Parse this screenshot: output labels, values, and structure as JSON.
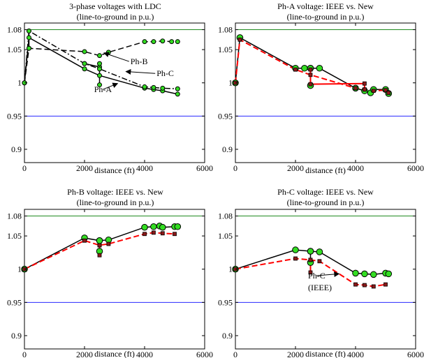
{
  "colors": {
    "upper_limit": "#1f8a1f",
    "lower_limit": "#2a2aff",
    "new_series": "#000000",
    "ieee_series": "#ff0000",
    "marker_fill": "#33dd22",
    "ieee_marker": "#8b1a1a"
  },
  "chart_data": [
    {
      "type": "line",
      "title": "3-phase voltages with LDC",
      "subtitle": "(line-to-ground in p.u.)",
      "xlabel": "distance (ft)",
      "xlim": [
        0,
        6000
      ],
      "ylim": [
        0.88,
        1.09
      ],
      "xticks": [
        0,
        2000,
        4000,
        6000
      ],
      "yticks": [
        0.9,
        0.95,
        1,
        1.05,
        1.08
      ],
      "xtick_labels": [
        "0",
        "2000",
        "4000",
        "6000"
      ],
      "ytick_labels": [
        "0.9",
        "0.95",
        "1",
        "1.05",
        "1.08"
      ],
      "hlines": [
        {
          "y": 1.08,
          "color": "#1f8a1f"
        },
        {
          "y": 0.95,
          "color": "#2a2aff"
        }
      ],
      "series": [
        {
          "color": "#000000",
          "dash": "solid",
          "marker": "small-green",
          "x": [
            0,
            150,
            2000,
            2500,
            4000,
            4300,
            4600,
            5100
          ],
          "y": [
            1.0,
            1.068,
            1.021,
            1.011,
            0.992,
            0.99,
            0.988,
            0.983
          ]
        },
        {
          "color": "#000000",
          "dash": "solid",
          "marker": "small-green",
          "x": [
            2000,
            2500
          ],
          "y": [
            1.029,
            1.024
          ]
        },
        {
          "color": "#000000",
          "dash": "solid",
          "marker": "small-green",
          "x": [
            2500,
            2500
          ],
          "y": [
            1.029,
            0.997
          ]
        },
        {
          "color": "#000000",
          "dash": "solid",
          "marker": "small-green",
          "x": [
            150,
            150
          ],
          "y": [
            1.078,
            1.052
          ]
        },
        {
          "color": "#000000",
          "dash": "dashdot",
          "marker": "small-green",
          "x": [
            0,
            150,
            2000,
            2500,
            4000,
            4300,
            4600,
            5100
          ],
          "y": [
            1.0,
            1.078,
            1.029,
            1.021,
            0.994,
            0.993,
            0.992,
            0.991
          ]
        },
        {
          "color": "#000000",
          "dash": "dashed",
          "marker": "small-green",
          "x": [
            0,
            150,
            2000,
            2500,
            2800,
            4000,
            4300,
            4600,
            4900,
            5100
          ],
          "y": [
            1.0,
            1.052,
            1.047,
            1.041,
            1.046,
            1.062,
            1.062,
            1.063,
            1.062,
            1.062
          ]
        }
      ],
      "annotations": [
        {
          "text": "Ph-B",
          "x": 3530,
          "y": 1.028,
          "arrow_to_x": 2650,
          "arrow_to_y": 1.045
        },
        {
          "text": "Ph-C",
          "x": 4400,
          "y": 1.01,
          "arrow_to_x": 3380,
          "arrow_to_y": 1.017
        },
        {
          "text": "Ph-A",
          "x": 2320,
          "y": 0.986,
          "arrow_to_x": 3100,
          "arrow_to_y": 0.999
        }
      ]
    },
    {
      "type": "line",
      "title": "Ph-A voltage: IEEE vs. New",
      "subtitle": "(line-to-ground in p.u.)",
      "xlabel": "distance (ft)",
      "xlim": [
        0,
        6000
      ],
      "ylim": [
        0.88,
        1.09
      ],
      "xticks": [
        0,
        2000,
        4000,
        6000
      ],
      "yticks": [
        0.9,
        0.95,
        1,
        1.05,
        1.08
      ],
      "xtick_labels": [
        "0",
        "2000",
        "4000",
        "6000"
      ],
      "ytick_labels": [
        "0.9",
        "0.95",
        "1",
        "1.05",
        "1.08"
      ],
      "hlines": [
        {
          "y": 1.08,
          "color": "#1f8a1f"
        },
        {
          "y": 0.95,
          "color": "#2a2aff"
        }
      ],
      "series": [
        {
          "color": "#000000",
          "dash": "solid",
          "marker": "big-green",
          "x": [
            0,
            150,
            2000,
            2300,
            2500,
            2800,
            4000,
            4300,
            4500,
            4600,
            5000,
            5100
          ],
          "y": [
            1.0,
            1.068,
            1.022,
            1.022,
            1.022,
            1.022,
            0.992,
            0.988,
            0.985,
            0.99,
            0.99,
            0.984
          ]
        },
        {
          "color": "#000000",
          "dash": "solid",
          "marker": "big-green",
          "x": [
            2500,
            2500
          ],
          "y": [
            1.022,
            0.996
          ]
        },
        {
          "color": "#ff0000",
          "dash": "dashed",
          "marker": "red-square",
          "x": [
            0,
            150,
            2000,
            2500,
            4000,
            4300,
            4600,
            5000,
            5100
          ],
          "y": [
            1.0,
            1.065,
            1.02,
            1.012,
            0.992,
            0.99,
            0.988,
            0.989,
            0.985
          ]
        },
        {
          "color": "#ff0000",
          "dash": "solid",
          "marker": "red-square",
          "x": [
            2500,
            2500,
            4300,
            4300
          ],
          "y": [
            1.02,
            0.998,
            0.999,
            0.99
          ]
        }
      ],
      "annotations": []
    },
    {
      "type": "line",
      "title": "Ph-B voltage: IEEE vs. New",
      "subtitle": "(line-to-ground in p.u.)",
      "xlabel": "distance (ft)",
      "xlim": [
        0,
        6000
      ],
      "ylim": [
        0.88,
        1.09
      ],
      "xticks": [
        0,
        2000,
        4000,
        6000
      ],
      "yticks": [
        0.9,
        0.95,
        1,
        1.05,
        1.08
      ],
      "xtick_labels": [
        "0",
        "2000",
        "4000",
        "6000"
      ],
      "ytick_labels": [
        "0.9",
        "0.95",
        "1",
        "1.05",
        "1.08"
      ],
      "hlines": [
        {
          "y": 1.08,
          "color": "#1f8a1f"
        },
        {
          "y": 0.95,
          "color": "#2a2aff"
        }
      ],
      "series": [
        {
          "color": "#000000",
          "dash": "solid",
          "marker": "big-green",
          "x": [
            0,
            2000,
            2500,
            2800,
            4000,
            4300,
            4500,
            4600,
            5000,
            5100
          ],
          "y": [
            1.0,
            1.047,
            1.043,
            1.044,
            1.063,
            1.064,
            1.065,
            1.063,
            1.064,
            1.064
          ]
        },
        {
          "color": "#000000",
          "dash": "solid",
          "marker": "big-green",
          "x": [
            2500,
            2500
          ],
          "y": [
            1.043,
            1.027
          ]
        },
        {
          "color": "#ff0000",
          "dash": "dashed",
          "marker": "red-square",
          "x": [
            0,
            2000,
            2500,
            2800,
            4000,
            4300,
            4600,
            5000
          ],
          "y": [
            1.0,
            1.043,
            1.036,
            1.038,
            1.053,
            1.055,
            1.054,
            1.053
          ]
        },
        {
          "color": "#ff0000",
          "dash": "solid",
          "marker": "red-square",
          "x": [
            2500,
            2500
          ],
          "y": [
            1.036,
            1.021
          ]
        }
      ],
      "annotations": []
    },
    {
      "type": "line",
      "title": "Ph-C voltage: IEEE vs. New",
      "subtitle": "(line-to-ground in p.u.)",
      "xlabel": "distance (ft)",
      "xlim": [
        0,
        6000
      ],
      "ylim": [
        0.88,
        1.09
      ],
      "xticks": [
        0,
        2000,
        4000,
        6000
      ],
      "yticks": [
        0.9,
        0.95,
        1,
        1.05,
        1.08
      ],
      "xtick_labels": [
        "0",
        "2000",
        "4000",
        "6000"
      ],
      "ytick_labels": [
        "0.9",
        "0.95",
        "1",
        "1.05",
        "1.08"
      ],
      "hlines": [
        {
          "y": 1.08,
          "color": "#1f8a1f"
        },
        {
          "y": 0.95,
          "color": "#2a2aff"
        }
      ],
      "series": [
        {
          "color": "#000000",
          "dash": "solid",
          "marker": "big-green",
          "x": [
            0,
            2000,
            2500,
            2800,
            4000,
            4300,
            4600,
            5000,
            5100
          ],
          "y": [
            1.0,
            1.029,
            1.027,
            1.026,
            0.994,
            0.993,
            0.992,
            0.994,
            0.993
          ]
        },
        {
          "color": "#000000",
          "dash": "solid",
          "marker": "big-green",
          "x": [
            2500,
            2500
          ],
          "y": [
            1.027,
            1.01
          ]
        },
        {
          "color": "#ff0000",
          "dash": "dashed",
          "marker": "red-square",
          "x": [
            0,
            2000,
            2500,
            2800,
            4000,
            4300,
            4600,
            5000
          ],
          "y": [
            1.0,
            1.016,
            1.014,
            1.012,
            0.977,
            0.976,
            0.974,
            0.977
          ]
        },
        {
          "color": "#ff0000",
          "dash": "solid",
          "marker": "red-square",
          "x": [
            2500,
            2500
          ],
          "y": [
            1.014,
            0.995
          ]
        }
      ],
      "annotations": [
        {
          "text": "Ph-C",
          "x": 2420,
          "y": 0.986,
          "arrow_to_x": 3450,
          "arrow_to_y": 0.993
        },
        {
          "text": "(IEEE)",
          "x": 2420,
          "y": 0.968
        }
      ]
    }
  ]
}
